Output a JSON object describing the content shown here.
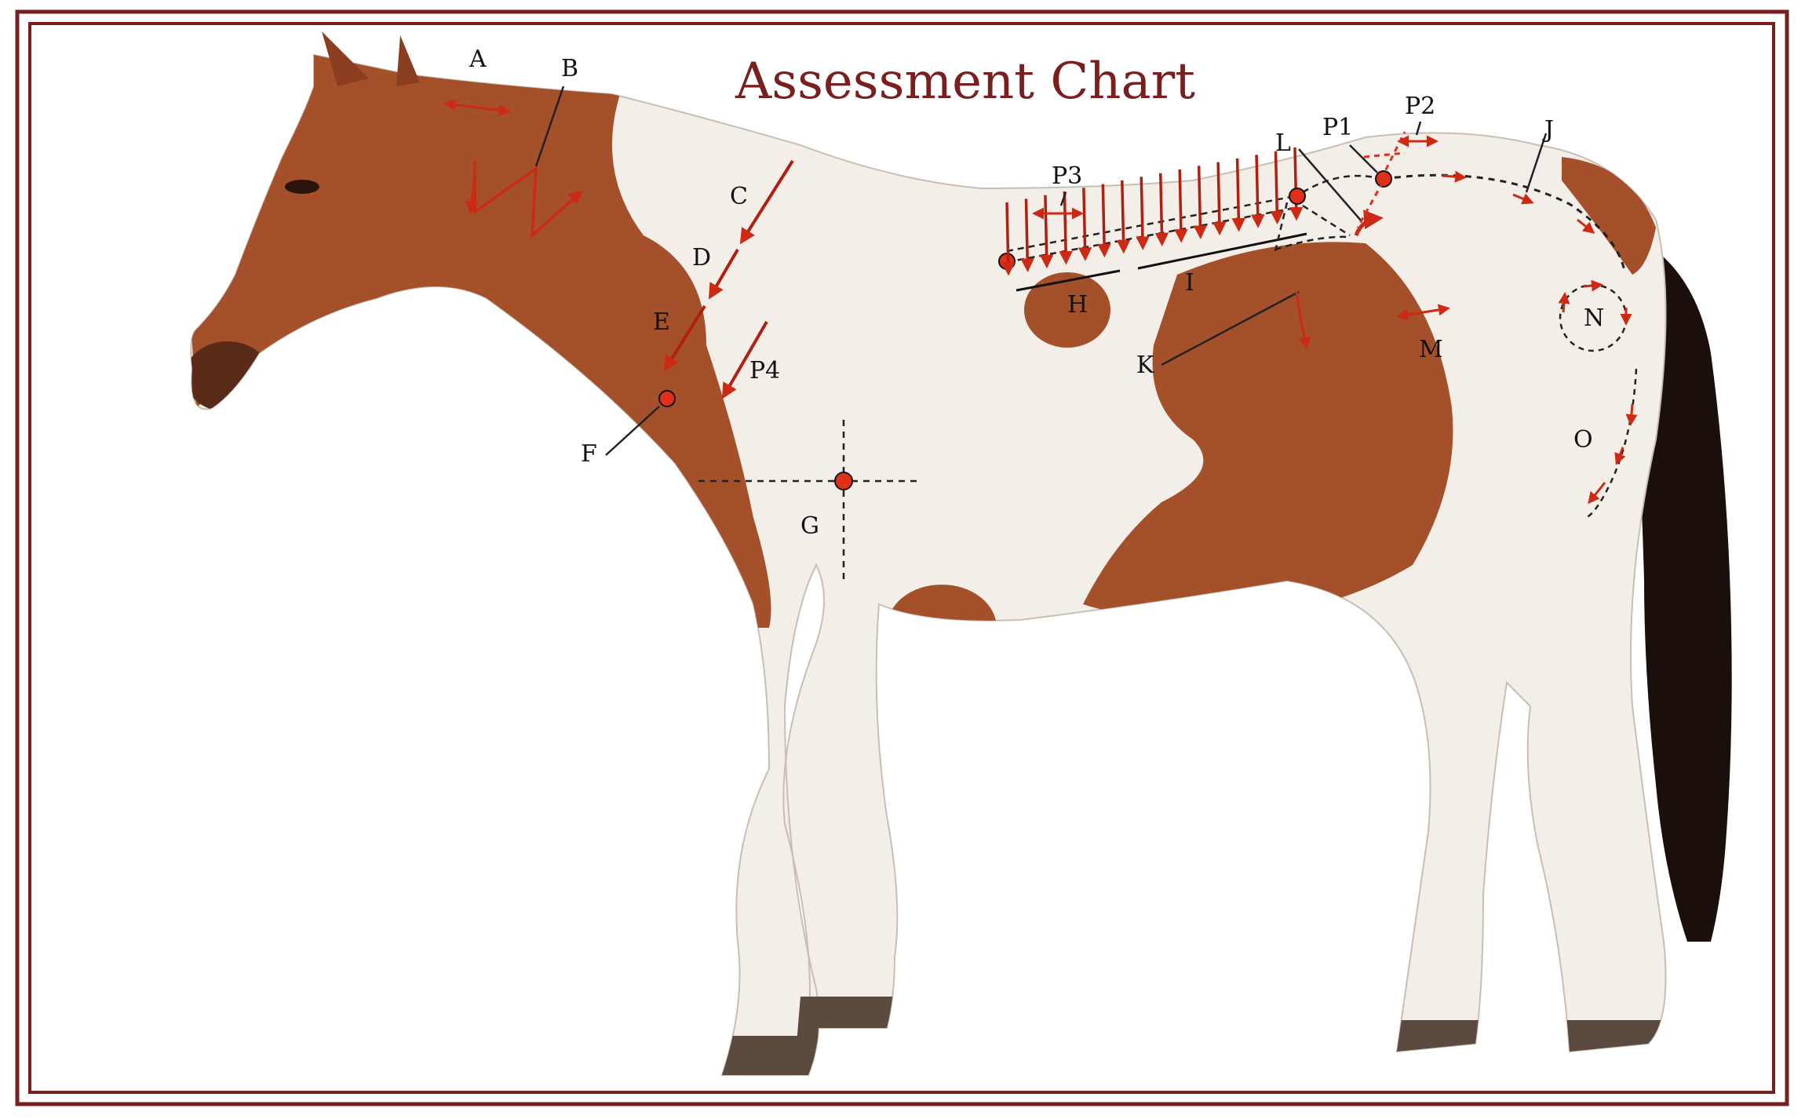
{
  "title": "Assessment Chart",
  "colors": {
    "frame": "#7a1f1f",
    "arrow": "#cc2a14",
    "coat_chestnut": "#a4502a",
    "coat_white": "#f3eee8",
    "hoof": "#5a4a40",
    "tail": "#1b0f0c"
  },
  "image": {
    "subject": "horse-silhouette"
  },
  "labels": {
    "A": "A",
    "B": "B",
    "C": "C",
    "D": "D",
    "E": "E",
    "F": "F",
    "G": "G",
    "H": "H",
    "I": "I",
    "J": "J",
    "K": "K",
    "L": "L",
    "M": "M",
    "N": "N",
    "O": "O",
    "P1": "P1",
    "P2": "P2",
    "P3": "P3",
    "P4": "P4"
  }
}
